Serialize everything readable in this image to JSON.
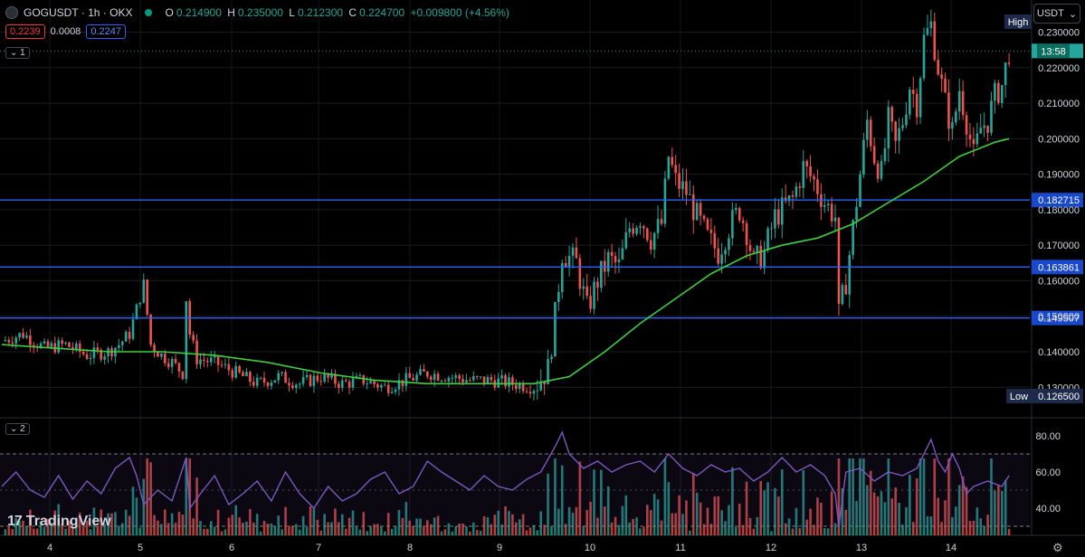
{
  "header": {
    "symbol_line": "GOGUSDT · 1h · OKX",
    "ohlc": {
      "o_label": "O",
      "o": "0.214900",
      "h_label": "H",
      "h": "0.235000",
      "l_label": "L",
      "l": "0.212300",
      "c_label": "C",
      "c": "0.224700",
      "change": "+0.009800 (+4.56%)"
    },
    "sell_price": "0.2239",
    "spread": "0.0008",
    "buy_price": "0.2247",
    "pane1_label": "1",
    "pane2_label": "2"
  },
  "currency": "USDT",
  "branding": "TradingView",
  "colors": {
    "bull": "#26a69a",
    "bear": "#ef5350",
    "ma": "#3bd13b",
    "hline": "#2962ff",
    "rsi": "#7e57c2"
  },
  "chart_data": {
    "type": "candlestick",
    "interval": "1h",
    "price_axis": {
      "ticks": [
        "0.230000",
        "0.220000",
        "0.210000",
        "0.200000",
        "0.190000",
        "0.180000",
        "0.170000",
        "0.160000",
        "0.150000",
        "0.140000",
        "0.130000"
      ],
      "high_label": "High",
      "low_label": "Low",
      "low_value": "0.126500",
      "current_price": "0.224700",
      "countdown": "13:58"
    },
    "time_axis": {
      "ticks": [
        "4",
        "5",
        "6",
        "7",
        "8",
        "9",
        "10",
        "11",
        "12",
        "13",
        "14"
      ]
    },
    "horizontal_lines": [
      {
        "label": "0.182715",
        "value": 0.182715
      },
      {
        "label": "0.163861",
        "value": 0.163861
      },
      {
        "label": "0.149507",
        "value": 0.149507
      }
    ],
    "close_path": [
      [
        0,
        0.143
      ],
      [
        6,
        0.145
      ],
      [
        12,
        0.141
      ],
      [
        18,
        0.142
      ],
      [
        24,
        0.139
      ],
      [
        30,
        0.14
      ],
      [
        33,
        0.142
      ],
      [
        36,
        0.145
      ],
      [
        40,
        0.159
      ],
      [
        42,
        0.142
      ],
      [
        45,
        0.139
      ],
      [
        48,
        0.137
      ],
      [
        51,
        0.134
      ],
      [
        52,
        0.155
      ],
      [
        53,
        0.145
      ],
      [
        55,
        0.138
      ],
      [
        60,
        0.137
      ],
      [
        66,
        0.134
      ],
      [
        72,
        0.131
      ],
      [
        78,
        0.133
      ],
      [
        84,
        0.131
      ],
      [
        90,
        0.133
      ],
      [
        96,
        0.131
      ],
      [
        102,
        0.132
      ],
      [
        108,
        0.13
      ],
      [
        114,
        0.132
      ],
      [
        120,
        0.134
      ],
      [
        126,
        0.133
      ],
      [
        132,
        0.132
      ],
      [
        138,
        0.132
      ],
      [
        144,
        0.131
      ],
      [
        150,
        0.13
      ],
      [
        154,
        0.135
      ],
      [
        156,
        0.15
      ],
      [
        158,
        0.168
      ],
      [
        162,
        0.165
      ],
      [
        165,
        0.152
      ],
      [
        168,
        0.16
      ],
      [
        171,
        0.166
      ],
      [
        174,
        0.164
      ],
      [
        177,
        0.175
      ],
      [
        180,
        0.178
      ],
      [
        183,
        0.172
      ],
      [
        186,
        0.176
      ],
      [
        188,
        0.195
      ],
      [
        190,
        0.188
      ],
      [
        193,
        0.185
      ],
      [
        196,
        0.178
      ],
      [
        199,
        0.172
      ],
      [
        202,
        0.168
      ],
      [
        205,
        0.175
      ],
      [
        208,
        0.18
      ],
      [
        210,
        0.174
      ],
      [
        212,
        0.165
      ],
      [
        215,
        0.168
      ],
      [
        218,
        0.178
      ],
      [
        220,
        0.18
      ],
      [
        223,
        0.183
      ],
      [
        226,
        0.192
      ],
      [
        229,
        0.188
      ],
      [
        232,
        0.182
      ],
      [
        235,
        0.178
      ],
      [
        236,
        0.15
      ],
      [
        238,
        0.16
      ],
      [
        240,
        0.175
      ],
      [
        242,
        0.19
      ],
      [
        244,
        0.205
      ],
      [
        246,
        0.195
      ],
      [
        248,
        0.19
      ],
      [
        250,
        0.205
      ],
      [
        252,
        0.198
      ],
      [
        254,
        0.205
      ],
      [
        256,
        0.215
      ],
      [
        258,
        0.21
      ],
      [
        260,
        0.228
      ],
      [
        262,
        0.232
      ],
      [
        264,
        0.22
      ],
      [
        266,
        0.21
      ],
      [
        268,
        0.202
      ],
      [
        270,
        0.214
      ],
      [
        272,
        0.205
      ],
      [
        274,
        0.195
      ],
      [
        276,
        0.203
      ],
      [
        278,
        0.205
      ],
      [
        280,
        0.212
      ],
      [
        282,
        0.215
      ],
      [
        284,
        0.2247
      ]
    ],
    "moving_average": [
      [
        0,
        0.142
      ],
      [
        15,
        0.141
      ],
      [
        30,
        0.14
      ],
      [
        45,
        0.14
      ],
      [
        60,
        0.139
      ],
      [
        75,
        0.137
      ],
      [
        90,
        0.134
      ],
      [
        105,
        0.132
      ],
      [
        120,
        0.131
      ],
      [
        135,
        0.131
      ],
      [
        150,
        0.131
      ],
      [
        160,
        0.133
      ],
      [
        170,
        0.14
      ],
      [
        180,
        0.148
      ],
      [
        190,
        0.155
      ],
      [
        200,
        0.162
      ],
      [
        210,
        0.167
      ],
      [
        220,
        0.17
      ],
      [
        230,
        0.172
      ],
      [
        240,
        0.176
      ],
      [
        250,
        0.182
      ],
      [
        260,
        0.188
      ],
      [
        270,
        0.195
      ],
      [
        280,
        0.199
      ],
      [
        284,
        0.2
      ]
    ],
    "rsi": {
      "axis_ticks": [
        "80.00",
        "60.00",
        "40.00"
      ],
      "levels": [
        70,
        30
      ],
      "values": [
        [
          0,
          52
        ],
        [
          4,
          60
        ],
        [
          8,
          50
        ],
        [
          12,
          46
        ],
        [
          16,
          58
        ],
        [
          20,
          45
        ],
        [
          24,
          55
        ],
        [
          28,
          48
        ],
        [
          32,
          62
        ],
        [
          36,
          68
        ],
        [
          38,
          58
        ],
        [
          40,
          42
        ],
        [
          44,
          50
        ],
        [
          48,
          44
        ],
        [
          52,
          68
        ],
        [
          53,
          40
        ],
        [
          56,
          48
        ],
        [
          60,
          58
        ],
        [
          64,
          42
        ],
        [
          68,
          48
        ],
        [
          72,
          55
        ],
        [
          76,
          44
        ],
        [
          80,
          60
        ],
        [
          84,
          48
        ],
        [
          88,
          40
        ],
        [
          92,
          52
        ],
        [
          96,
          44
        ],
        [
          100,
          48
        ],
        [
          104,
          56
        ],
        [
          108,
          60
        ],
        [
          112,
          48
        ],
        [
          116,
          52
        ],
        [
          120,
          66
        ],
        [
          124,
          60
        ],
        [
          128,
          55
        ],
        [
          132,
          50
        ],
        [
          136,
          58
        ],
        [
          140,
          52
        ],
        [
          144,
          50
        ],
        [
          148,
          56
        ],
        [
          152,
          60
        ],
        [
          156,
          74
        ],
        [
          158,
          82
        ],
        [
          160,
          70
        ],
        [
          164,
          62
        ],
        [
          168,
          66
        ],
        [
          172,
          60
        ],
        [
          176,
          64
        ],
        [
          180,
          66
        ],
        [
          184,
          60
        ],
        [
          188,
          70
        ],
        [
          192,
          62
        ],
        [
          196,
          58
        ],
        [
          200,
          64
        ],
        [
          204,
          60
        ],
        [
          208,
          62
        ],
        [
          212,
          55
        ],
        [
          216,
          60
        ],
        [
          220,
          68
        ],
        [
          224,
          60
        ],
        [
          228,
          64
        ],
        [
          232,
          58
        ],
        [
          235,
          48
        ],
        [
          236,
          30
        ],
        [
          238,
          60
        ],
        [
          242,
          62
        ],
        [
          246,
          55
        ],
        [
          250,
          60
        ],
        [
          254,
          58
        ],
        [
          258,
          62
        ],
        [
          262,
          78
        ],
        [
          264,
          66
        ],
        [
          266,
          60
        ],
        [
          268,
          70
        ],
        [
          270,
          62
        ],
        [
          272,
          48
        ],
        [
          274,
          52
        ],
        [
          278,
          55
        ],
        [
          282,
          52
        ],
        [
          284,
          58
        ]
      ]
    }
  }
}
